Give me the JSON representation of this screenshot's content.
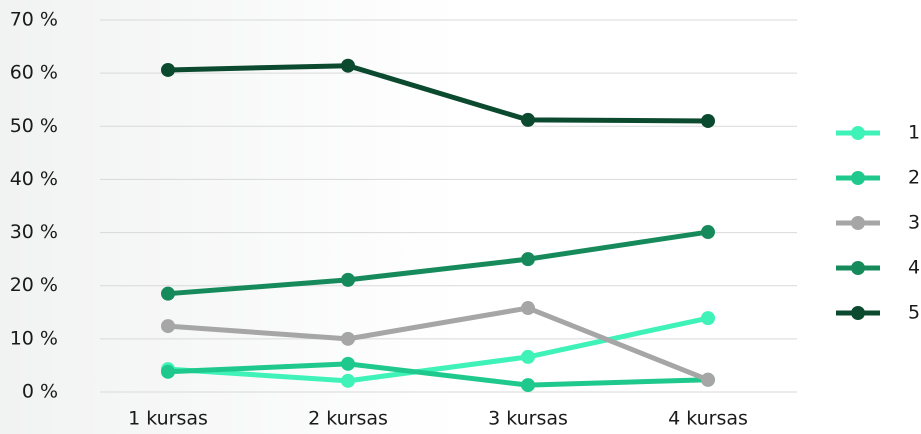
{
  "chart_data": {
    "type": "line",
    "categories": [
      "1 kursas",
      "2 kursas",
      "3 kursas",
      "4 kursas"
    ],
    "series": [
      {
        "name": "1",
        "color": "#3ff2b8",
        "values": [
          4.3,
          2.1,
          6.6,
          13.9
        ]
      },
      {
        "name": "2",
        "color": "#1fc98d",
        "values": [
          3.8,
          5.3,
          1.3,
          2.3
        ]
      },
      {
        "name": "3",
        "color": "#a6a6a6",
        "values": [
          12.4,
          10.0,
          15.8,
          2.3
        ]
      },
      {
        "name": "4",
        "color": "#178a5c",
        "values": [
          18.5,
          21.1,
          25.0,
          30.1
        ]
      },
      {
        "name": "5",
        "color": "#0c4a30",
        "values": [
          60.6,
          61.4,
          51.2,
          51.0
        ]
      }
    ],
    "ylim": [
      0,
      70
    ],
    "yticks": [
      {
        "value": 0,
        "label": "0 %"
      },
      {
        "value": 10,
        "label": "10 %"
      },
      {
        "value": 20,
        "label": "20 %"
      },
      {
        "value": 30,
        "label": "30 %"
      },
      {
        "value": 40,
        "label": "40 %"
      },
      {
        "value": 50,
        "label": "50 %"
      },
      {
        "value": 60,
        "label": "60 %"
      },
      {
        "value": 70,
        "label": "70 %"
      }
    ],
    "grid": true,
    "legend": "right"
  }
}
